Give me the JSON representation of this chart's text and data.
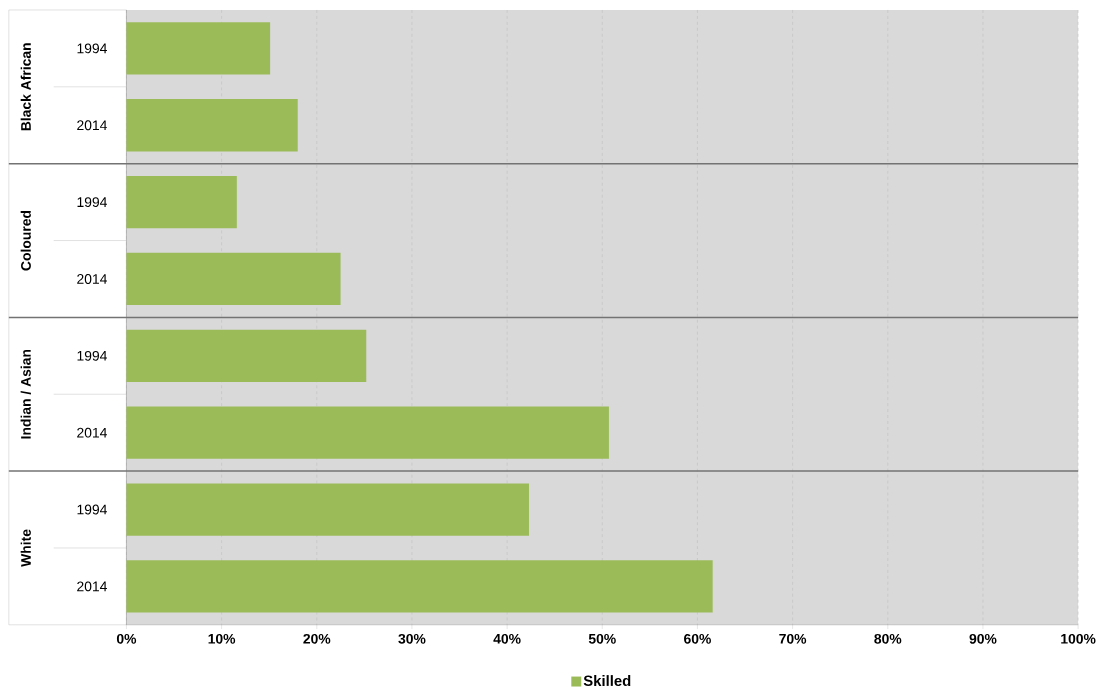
{
  "chart_data": {
    "type": "bar",
    "orientation": "horizontal",
    "categories": [
      "1994",
      "2014",
      "1994",
      "2014",
      "1994",
      "2014",
      "1994",
      "2014"
    ],
    "series": [
      {
        "name": "Skilled",
        "color": "#9bbb59",
        "values": [
          15.1,
          18.0,
          11.6,
          22.5,
          25.2,
          50.7,
          42.3,
          61.6
        ]
      }
    ],
    "xlim": [
      0,
      100
    ],
    "xticks": [
      {
        "value": 0,
        "label": "0%"
      },
      {
        "value": 10,
        "label": "10%"
      },
      {
        "value": 20,
        "label": "20%"
      },
      {
        "value": 30,
        "label": "30%"
      },
      {
        "value": 40,
        "label": "40%"
      },
      {
        "value": 50,
        "label": "50%"
      },
      {
        "value": 60,
        "label": "60%"
      },
      {
        "value": 70,
        "label": "70%"
      },
      {
        "value": 80,
        "label": "80%"
      },
      {
        "value": 90,
        "label": "90%"
      },
      {
        "value": 100,
        "label": "100%"
      }
    ],
    "grid": "x",
    "legend": "bottom",
    "annotations": [
      "Black African",
      "Coloured",
      "Indian / Asian",
      "White"
    ]
  }
}
